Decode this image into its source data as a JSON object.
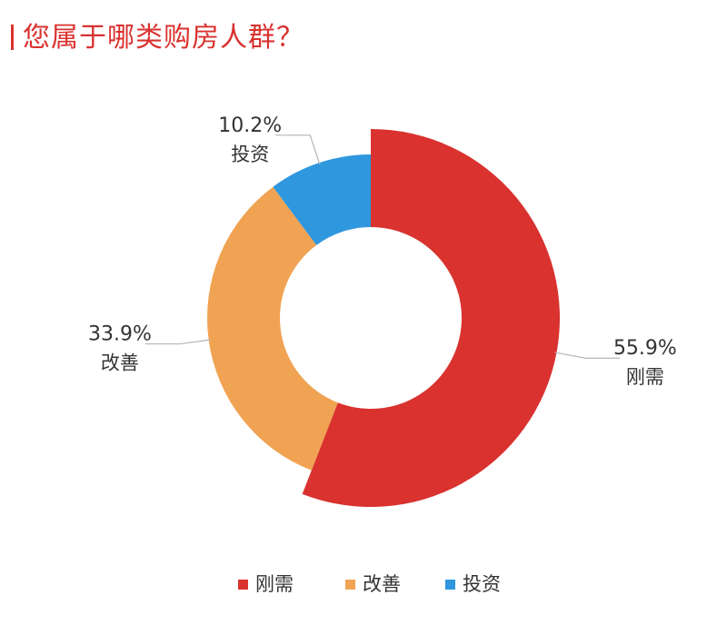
{
  "title": "您属于哪类购房人群？",
  "chart_data": {
    "type": "pie",
    "title": "您属于哪类购房人群？",
    "categories": [
      "刚需",
      "改善",
      "投资"
    ],
    "values": [
      55.9,
      33.9,
      10.2
    ],
    "labels": [
      "55.9%",
      "33.9%",
      "10.2%"
    ],
    "colors": [
      "#d9322f",
      "#f0a352",
      "#2f97de"
    ],
    "donut": true,
    "legend": "bottom"
  }
}
